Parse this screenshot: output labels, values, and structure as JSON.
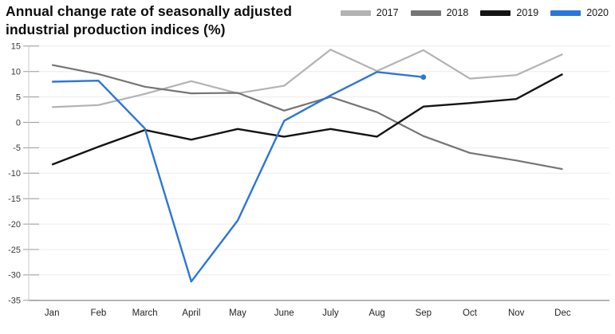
{
  "header": {
    "title_line1": "Annual change rate of seasonally adjusted",
    "title_line2": "industrial production indices (%)"
  },
  "legend": [
    {
      "label": "2017",
      "color": "#b3b3b3"
    },
    {
      "label": "2018",
      "color": "#757575"
    },
    {
      "label": "2019",
      "color": "#141414"
    },
    {
      "label": "2020",
      "color": "#2b76d9"
    }
  ],
  "chart_data": {
    "type": "line",
    "title": "Annual change rate of seasonally adjusted industrial production indices (%)",
    "categories": [
      "Jan",
      "Feb",
      "March",
      "April",
      "May",
      "June",
      "July",
      "Aug",
      "Sep",
      "Oct",
      "Nov",
      "Dec"
    ],
    "yticks": [
      15,
      10,
      5,
      0,
      -5,
      -10,
      -15,
      -20,
      -25,
      -30,
      -35
    ],
    "ylim": [
      -35,
      15
    ],
    "grid": true,
    "legend_position": "top-right",
    "series": [
      {
        "name": "2017",
        "color": "#b3b3b3",
        "width": 2.2,
        "end_marker": false,
        "values": [
          3.0,
          3.4,
          5.6,
          8.1,
          5.7,
          7.2,
          14.3,
          10.1,
          14.2,
          8.6,
          9.3,
          13.4
        ]
      },
      {
        "name": "2018",
        "color": "#757575",
        "width": 2.2,
        "end_marker": false,
        "values": [
          11.3,
          9.5,
          7.0,
          5.7,
          5.8,
          2.3,
          5.0,
          2.0,
          -2.7,
          -6.0,
          -7.5,
          -9.2
        ]
      },
      {
        "name": "2019",
        "color": "#141414",
        "width": 2.4,
        "end_marker": false,
        "values": [
          -8.3,
          -4.8,
          -1.5,
          -3.4,
          -1.3,
          -2.8,
          -1.3,
          -2.8,
          3.1,
          3.8,
          4.6,
          9.5
        ]
      },
      {
        "name": "2020",
        "color": "#2b76d9",
        "width": 2.4,
        "end_marker": true,
        "values": [
          8.0,
          8.2,
          -1.2,
          -31.3,
          -19.3,
          0.3,
          5.3,
          9.9,
          8.9,
          null,
          null,
          null
        ]
      }
    ]
  },
  "axis_style": {
    "grid_color": "#ececec",
    "axis_line_color": "#c9c9c9",
    "tick_color": "#999999",
    "bottom_axis_color": "#a6a6a6"
  }
}
